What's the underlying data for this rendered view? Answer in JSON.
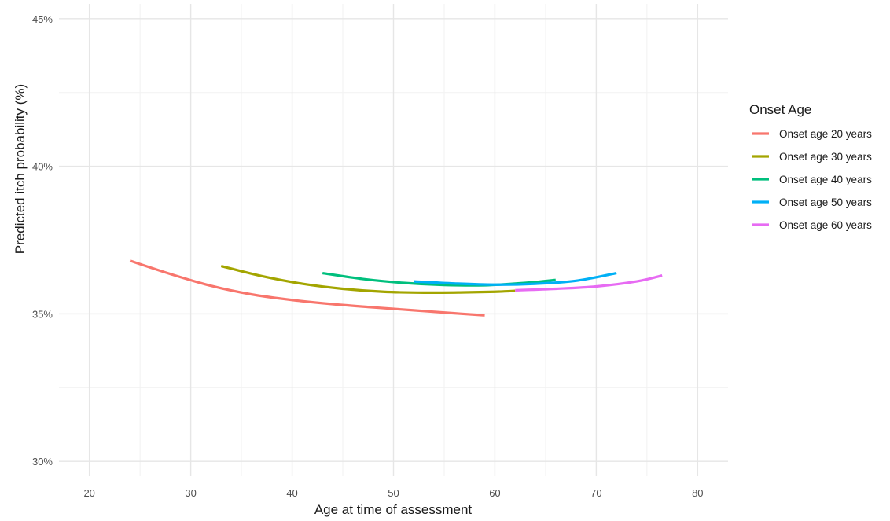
{
  "chart_data": {
    "type": "line",
    "xlabel": "Age at time of assessment",
    "ylabel": "Predicted itch probability (%)",
    "xlim": [
      17,
      83
    ],
    "ylim": [
      29.5,
      45.5
    ],
    "x_ticks": [
      20,
      30,
      40,
      50,
      60,
      70,
      80
    ],
    "y_ticks": [
      30,
      35,
      40,
      45
    ],
    "y_tick_labels": [
      "30%",
      "35%",
      "40%",
      "45%"
    ],
    "grid": true,
    "legend": {
      "title": "Onset Age",
      "position": "right"
    },
    "series": [
      {
        "name": "Onset age 20 years",
        "color": "#F8766D",
        "points": [
          [
            24,
            36.8
          ],
          [
            28,
            36.35
          ],
          [
            32,
            35.95
          ],
          [
            36,
            35.66
          ],
          [
            40,
            35.47
          ],
          [
            44,
            35.33
          ],
          [
            48,
            35.22
          ],
          [
            52,
            35.12
          ],
          [
            56,
            35.02
          ],
          [
            59,
            34.95
          ]
        ]
      },
      {
        "name": "Onset age 30 years",
        "color": "#A3A500",
        "points": [
          [
            33,
            36.62
          ],
          [
            37,
            36.28
          ],
          [
            41,
            36.02
          ],
          [
            45,
            35.85
          ],
          [
            49,
            35.75
          ],
          [
            53,
            35.72
          ],
          [
            57,
            35.73
          ],
          [
            60,
            35.75
          ],
          [
            62,
            35.78
          ]
        ]
      },
      {
        "name": "Onset age 40 years",
        "color": "#00BF7D",
        "points": [
          [
            43,
            36.38
          ],
          [
            47,
            36.18
          ],
          [
            51,
            36.05
          ],
          [
            55,
            35.98
          ],
          [
            59,
            35.97
          ],
          [
            63,
            36.05
          ],
          [
            66,
            36.15
          ]
        ]
      },
      {
        "name": "Onset age 50 years",
        "color": "#00B0F6",
        "points": [
          [
            52,
            36.1
          ],
          [
            56,
            36.03
          ],
          [
            60,
            35.99
          ],
          [
            64,
            36.02
          ],
          [
            68,
            36.12
          ],
          [
            72,
            36.38
          ]
        ]
      },
      {
        "name": "Onset age 60 years",
        "color": "#E76BF3",
        "points": [
          [
            62,
            35.8
          ],
          [
            66,
            35.85
          ],
          [
            70,
            35.93
          ],
          [
            74,
            36.1
          ],
          [
            76.5,
            36.3
          ]
        ]
      }
    ]
  }
}
